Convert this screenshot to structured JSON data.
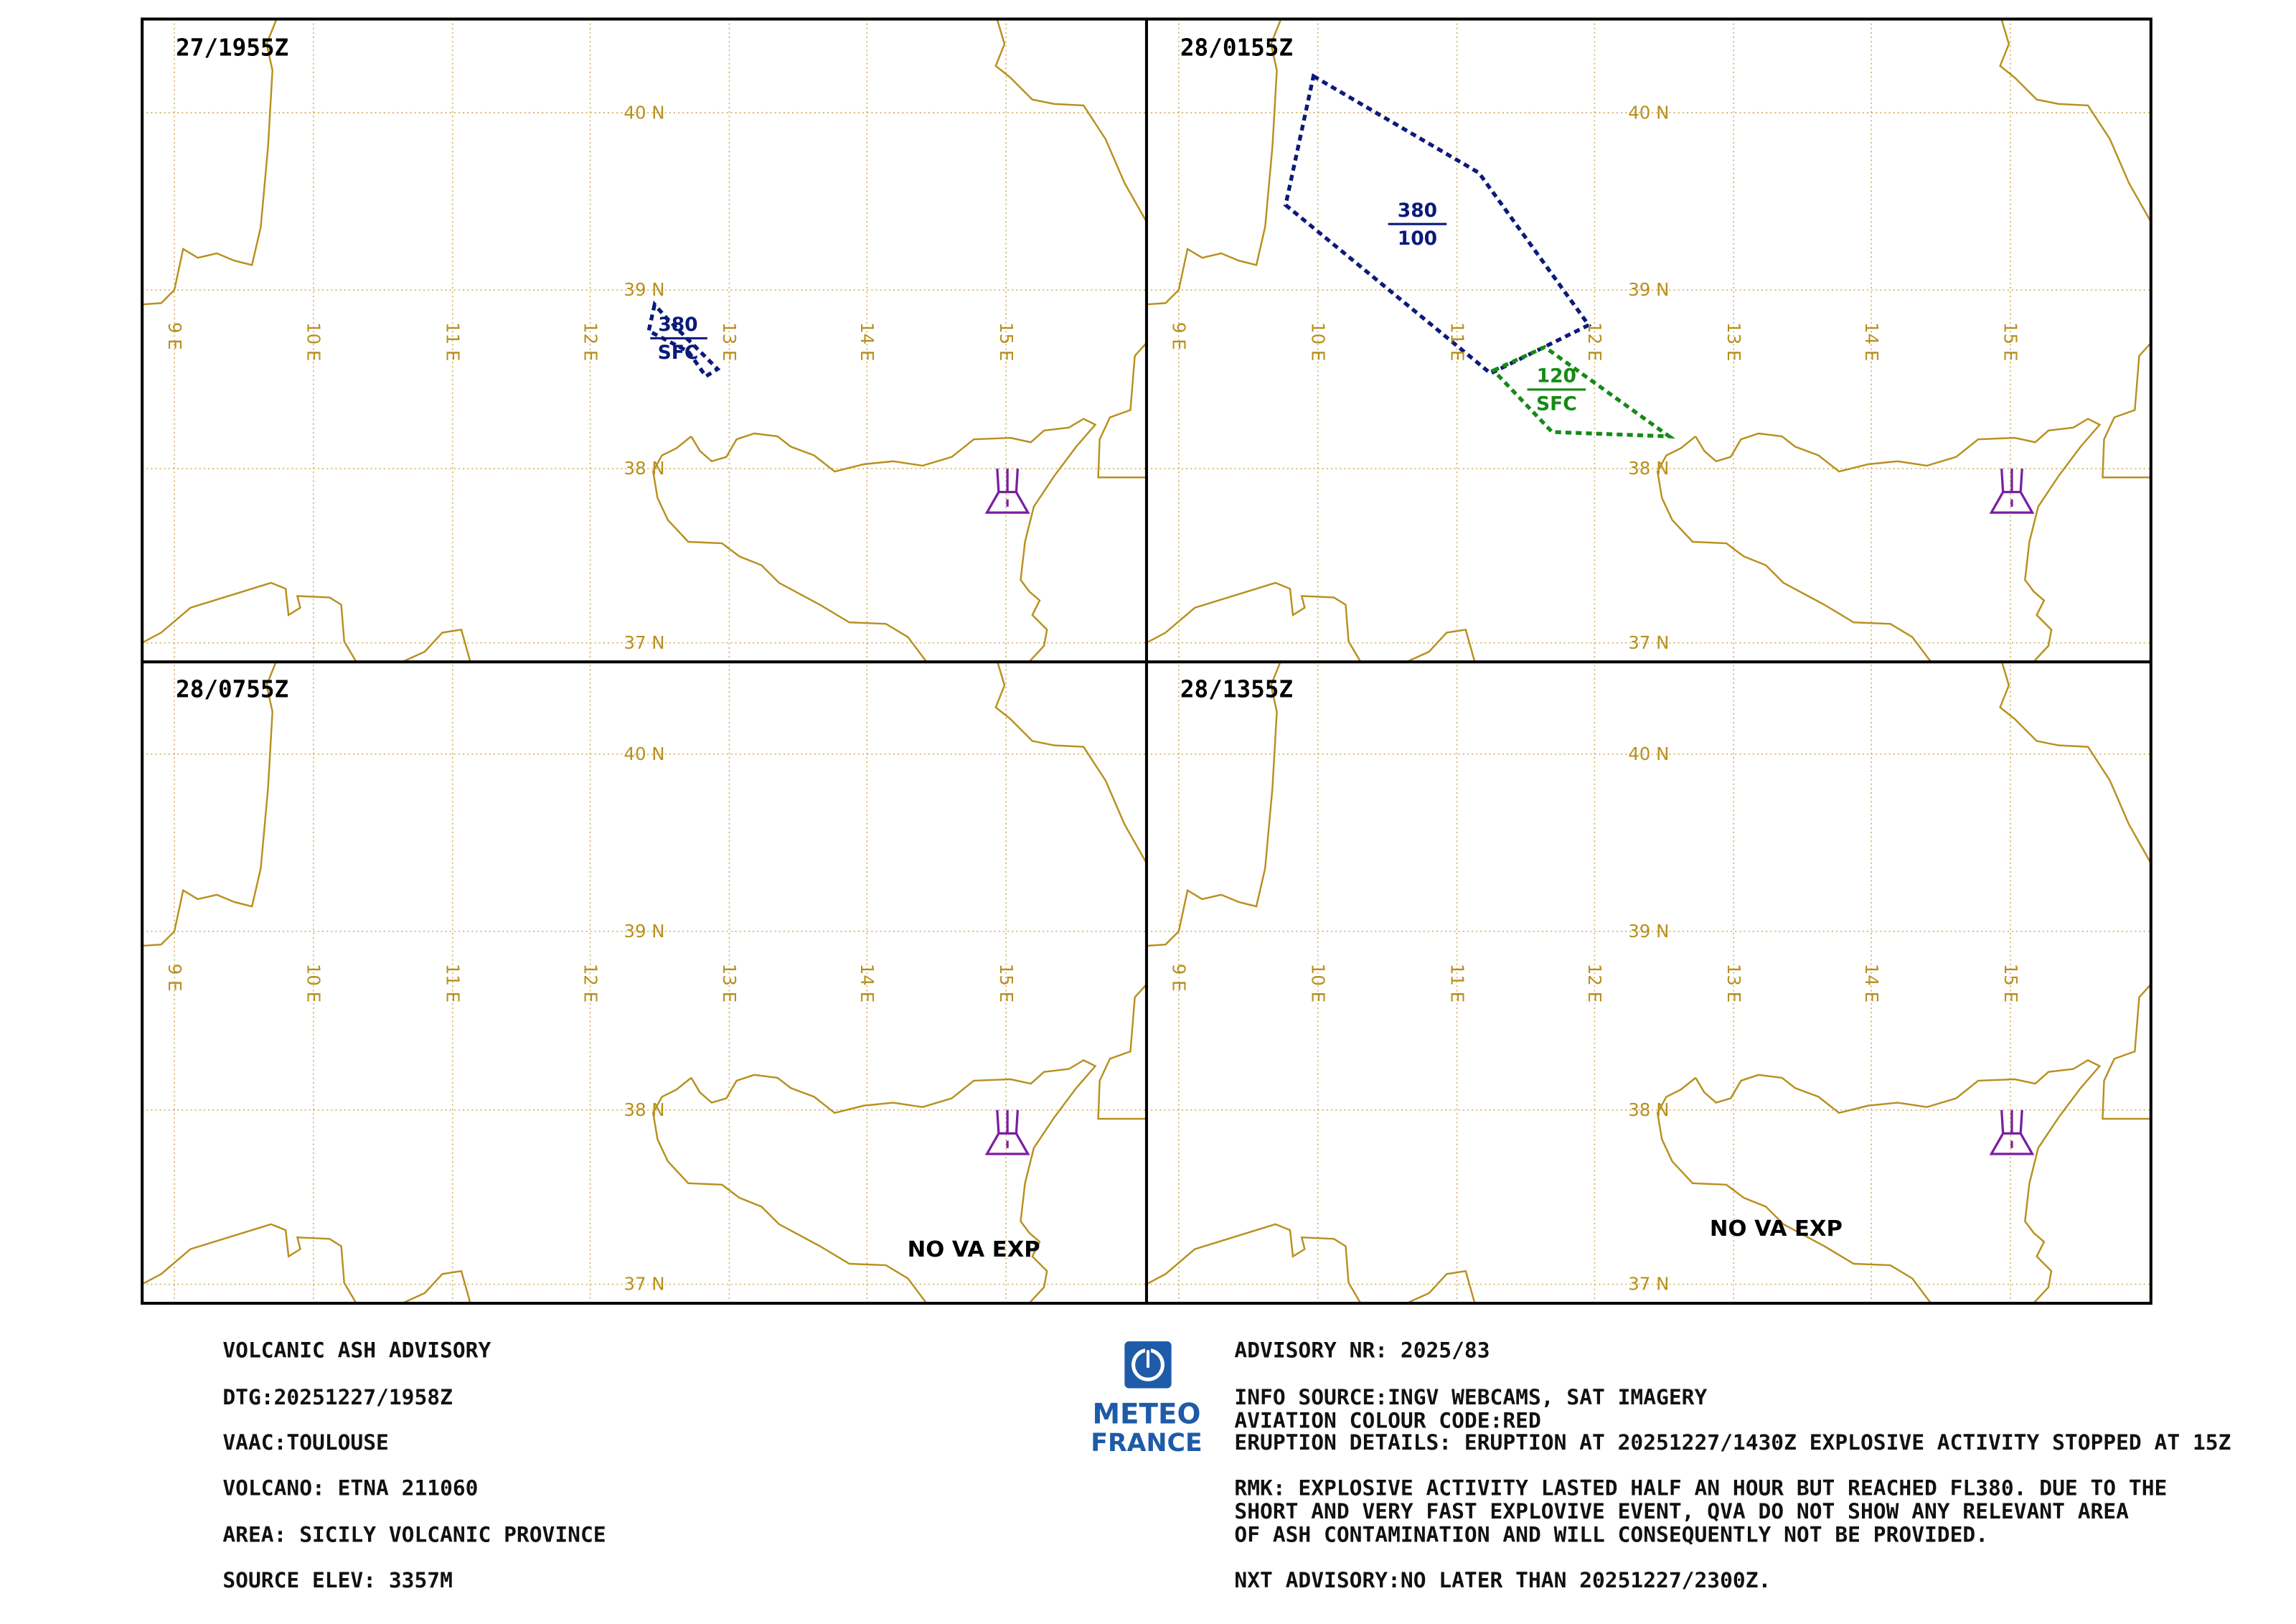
{
  "panels": [
    {
      "time": "27/1955Z",
      "ash": [
        {
          "top": "380",
          "base": "SFC"
        }
      ]
    },
    {
      "time": "28/0155Z",
      "ash": [
        {
          "top": "380",
          "base": "100"
        },
        {
          "top": "120",
          "base": "SFC"
        }
      ]
    },
    {
      "time": "28/0755Z",
      "note": "NO VA EXP"
    },
    {
      "time": "28/1355Z",
      "note": "NO VA EXP"
    }
  ],
  "grid": {
    "lat_labels": [
      "40 N",
      "39 N",
      "38 N",
      "37 N"
    ],
    "lon_labels": [
      "9 E",
      "10 E",
      "11 E",
      "12 E",
      "13 E",
      "14 E",
      "15 E"
    ]
  },
  "advisory": {
    "left": [
      "VOLCANIC ASH ADVISORY",
      "DTG:20251227/1958Z",
      "VAAC:TOULOUSE",
      "VOLCANO: ETNA 211060",
      "AREA: SICILY VOLCANIC PROVINCE",
      "SOURCE ELEV: 3357M"
    ],
    "logo": [
      "METEO",
      "FRANCE"
    ],
    "right": [
      "ADVISORY NR: 2025/83",
      "INFO SOURCE:INGV WEBCAMS, SAT IMAGERY",
      "AVIATION COLOUR CODE:RED",
      "ERUPTION DETAILS: ERUPTION AT 20251227/1430Z EXPLOSIVE ACTIVITY STOPPED AT 15Z",
      "RMK: EXPLOSIVE ACTIVITY LASTED HALF AN HOUR BUT  REACHED FL380. DUE TO THE",
      "SHORT AND VERY FAST  EXPLOVIVE EVENT, QVA DO NOT SHOW ANY RELEVANT  AREA",
      "OF ASH CONTAMINATION AND WILL CONSEQUENTLY  NOT BE PROVIDED.",
      "NXT ADVISORY:NO LATER THAN 20251227/2300Z."
    ]
  }
}
